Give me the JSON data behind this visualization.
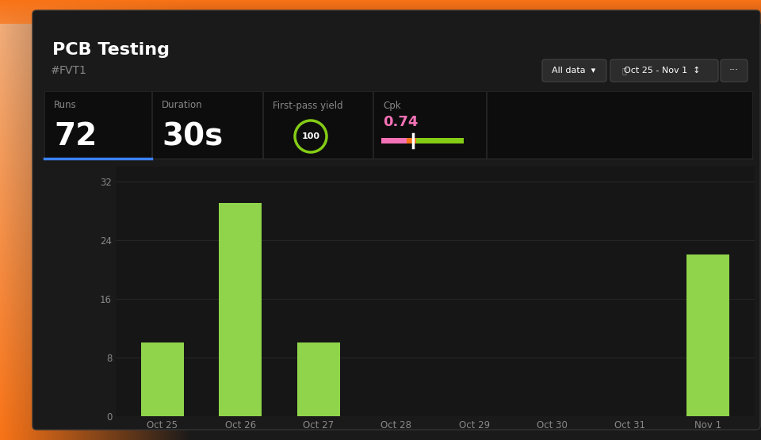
{
  "title": "PCB Testing",
  "subtitle_hash": "#",
  "subtitle_label": "FVT1",
  "filter_label": "All data",
  "date_range": "Oct 25 - Nov 1",
  "bar_categories": [
    "Oct 25",
    "Oct 26",
    "Oct 27",
    "Oct 28",
    "Oct 29",
    "Oct 30",
    "Oct 31",
    "Nov 1"
  ],
  "bar_values": [
    10,
    29,
    10,
    0,
    0,
    0,
    0,
    22
  ],
  "bar_color": "#8fd44a",
  "yticks": [
    0,
    8,
    16,
    24,
    32
  ],
  "ylim": [
    0,
    34
  ],
  "bg_outer": "#1a1a1a",
  "bg_gradient_left": "#f0a070",
  "bg_gradient_top": "#f97316",
  "panel_dark": "#161616",
  "card_dark": "#0f0f0f",
  "text_primary": "#ffffff",
  "text_secondary": "#888888",
  "grid_color": "#2a2a2a",
  "accent_blue": "#3b82f6",
  "cpk_color": "#f472b6",
  "circle_color": "#84cc16",
  "slider_pink": "#f472b6",
  "slider_orange": "#f97316",
  "slider_green": "#84cc16"
}
